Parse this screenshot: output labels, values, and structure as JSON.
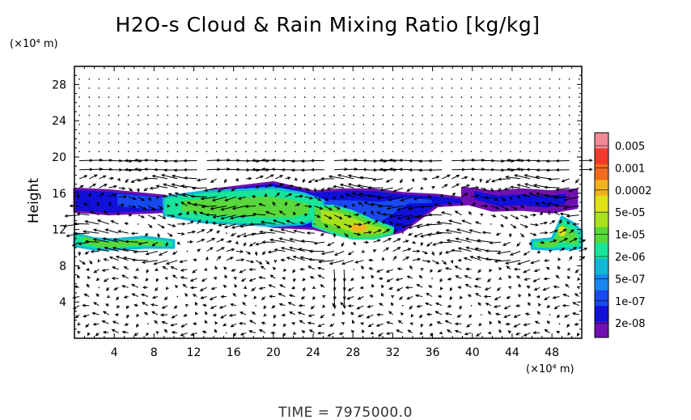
{
  "chart_data": {
    "type": "heatmap",
    "title": "H2O-s Cloud & Rain Mixing Ratio [kg/kg]",
    "ylabel": "Height",
    "x_unit": "(×10⁴ m)",
    "y_unit": "(×10⁴ m)",
    "xlim": [
      0,
      51
    ],
    "ylim": [
      0,
      30
    ],
    "x_ticks": [
      4,
      8,
      12,
      16,
      20,
      24,
      28,
      32,
      36,
      40,
      44,
      48
    ],
    "y_ticks": [
      4,
      8,
      12,
      16,
      20,
      24,
      28
    ],
    "time_label": "TIME  =  7975000.0",
    "colorbar": {
      "levels": [
        "0.005",
        "0.001",
        "0.0002",
        "5e-05",
        "1e-05",
        "2e-06",
        "5e-07",
        "1e-07",
        "2e-08"
      ],
      "colors": [
        "#f08a96",
        "#f23a2a",
        "#f26a1e",
        "#f2b21e",
        "#e0e218",
        "#a8e21c",
        "#58d83a",
        "#18e49a",
        "#10b8d8",
        "#1888f0",
        "#1848f0",
        "#1010d8",
        "#7010b0"
      ]
    },
    "cloud_regions": [
      {
        "name": "upper-layer-left",
        "x": [
          0.0,
          3.5,
          10.0,
          14.0,
          20.0,
          24.0,
          27.0,
          30.0,
          33.0,
          36.5,
          39.5
        ],
        "y_top": [
          16.5,
          16.3,
          15.6,
          16.4,
          17.2,
          16.2,
          16.4,
          16.4,
          16.0,
          15.8,
          15.4
        ],
        "y_bottom": [
          14.0,
          13.7,
          14.0,
          13.4,
          12.3,
          12.1,
          11.3,
          11.0,
          11.8,
          14.6,
          14.8
        ],
        "level": 2
      },
      {
        "name": "upper-layer-right",
        "x": [
          39.0,
          42.0,
          45.0,
          48.0,
          50.5
        ],
        "y_top": [
          16.6,
          16.2,
          16.4,
          16.2,
          16.4
        ],
        "y_bottom": [
          15.0,
          14.1,
          14.2,
          13.9,
          14.4
        ],
        "level": 1
      },
      {
        "name": "core-upper",
        "x": [
          9.0,
          13.0,
          17.0,
          20.0,
          23.0,
          25.0
        ],
        "y_top": [
          15.6,
          16.2,
          16.4,
          16.6,
          16.0,
          15.2
        ],
        "y_bottom": [
          13.6,
          12.8,
          12.6,
          12.4,
          12.6,
          13.4
        ],
        "level": 6
      },
      {
        "name": "core-lower",
        "x": [
          24.0,
          26.0,
          28.0,
          30.0,
          32.0
        ],
        "y_top": [
          14.6,
          14.6,
          14.0,
          13.0,
          12.2
        ],
        "y_bottom": [
          12.4,
          11.6,
          11.0,
          11.0,
          11.6
        ],
        "level": 7
      },
      {
        "name": "lower-layer-left",
        "x": [
          0.0,
          2.0,
          4.0,
          7.0,
          10.0
        ],
        "y_top": [
          11.6,
          11.0,
          10.9,
          11.2,
          10.8
        ],
        "y_bottom": [
          10.2,
          9.8,
          9.8,
          10.0,
          10.0
        ],
        "level": 6
      },
      {
        "name": "lower-layer-right",
        "x": [
          46.0,
          48.0,
          49.0,
          50.0,
          51.0
        ],
        "y_top": [
          10.8,
          11.0,
          13.4,
          12.8,
          11.8
        ],
        "y_bottom": [
          9.9,
          9.8,
          9.9,
          9.8,
          10.0
        ],
        "level": 6
      }
    ]
  }
}
